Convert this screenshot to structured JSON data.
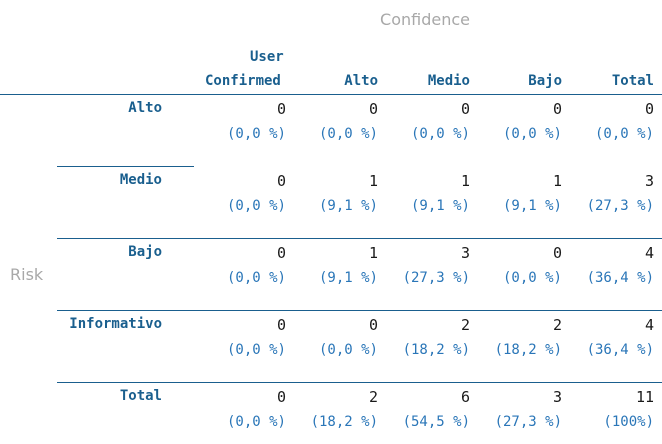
{
  "axes": {
    "column_title": "Confidence",
    "row_title": "Risk"
  },
  "columns": [
    {
      "line1": "User",
      "line2": "Confirmed"
    },
    {
      "line1": "",
      "line2": "Alto"
    },
    {
      "line1": "",
      "line2": "Medio"
    },
    {
      "line1": "",
      "line2": "Bajo"
    },
    {
      "line1": "",
      "line2": "Total"
    }
  ],
  "rows": [
    {
      "label": "Alto",
      "counts": [
        "0",
        "0",
        "0",
        "0",
        "0"
      ],
      "pcts": [
        "(0,0 %)",
        "(0,0 %)",
        "(0,0 %)",
        "(0,0 %)",
        "(0,0 %)"
      ]
    },
    {
      "label": "Medio",
      "counts": [
        "0",
        "1",
        "1",
        "1",
        "3"
      ],
      "pcts": [
        "(0,0 %)",
        "(9,1 %)",
        "(9,1 %)",
        "(9,1 %)",
        "(27,3 %)"
      ]
    },
    {
      "label": "Bajo",
      "counts": [
        "0",
        "1",
        "3",
        "0",
        "4"
      ],
      "pcts": [
        "(0,0 %)",
        "(9,1 %)",
        "(27,3 %)",
        "(0,0 %)",
        "(36,4 %)"
      ]
    },
    {
      "label": "Informativo",
      "counts": [
        "0",
        "0",
        "2",
        "2",
        "4"
      ],
      "pcts": [
        "(0,0 %)",
        "(0,0 %)",
        "(18,2 %)",
        "(18,2 %)",
        "(36,4 %)"
      ]
    },
    {
      "label": "Total",
      "counts": [
        "0",
        "2",
        "6",
        "3",
        "11"
      ],
      "pcts": [
        "(0,0 %)",
        "(18,2 %)",
        "(54,5 %)",
        "(27,3 %)",
        "(100%)"
      ]
    }
  ]
}
